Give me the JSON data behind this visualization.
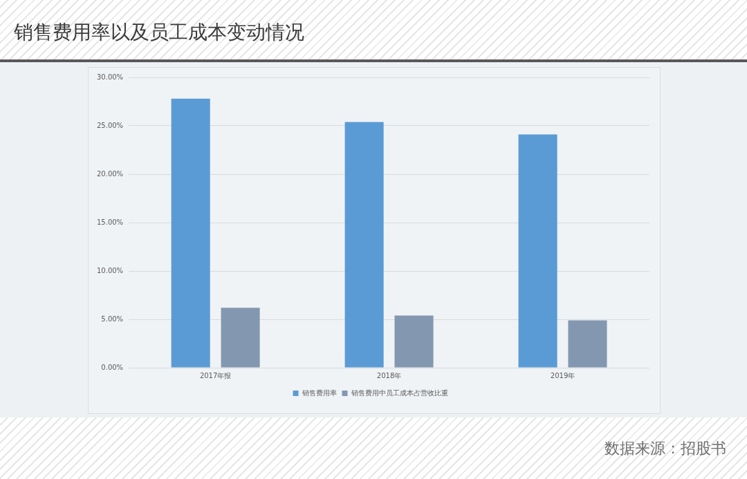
{
  "chart_data": {
    "type": "bar",
    "title": "销售费用率以及员工成本变动情况",
    "annotations": [
      "数据来源：招股书"
    ],
    "categories": [
      "2017年报",
      "2018年",
      "2019年"
    ],
    "series": [
      {
        "name": "销售费用率",
        "color": "#5b9bd5",
        "values": [
          27.8,
          25.4,
          24.1
        ]
      },
      {
        "name": "销售费用中员工成本占营收比重",
        "color": "#8497b0",
        "values": [
          6.2,
          5.4,
          4.9
        ]
      }
    ],
    "ylim": [
      0,
      30
    ],
    "yticks": [
      {
        "value": 0,
        "label": "0.00%"
      },
      {
        "value": 5,
        "label": "5.00%"
      },
      {
        "value": 10,
        "label": "10.00%"
      },
      {
        "value": 15,
        "label": "15.00%"
      },
      {
        "value": 20,
        "label": "20.00%"
      },
      {
        "value": 25,
        "label": "25.00%"
      },
      {
        "value": 30,
        "label": "30.00%"
      }
    ],
    "grid": "y",
    "legend": "bottom"
  }
}
